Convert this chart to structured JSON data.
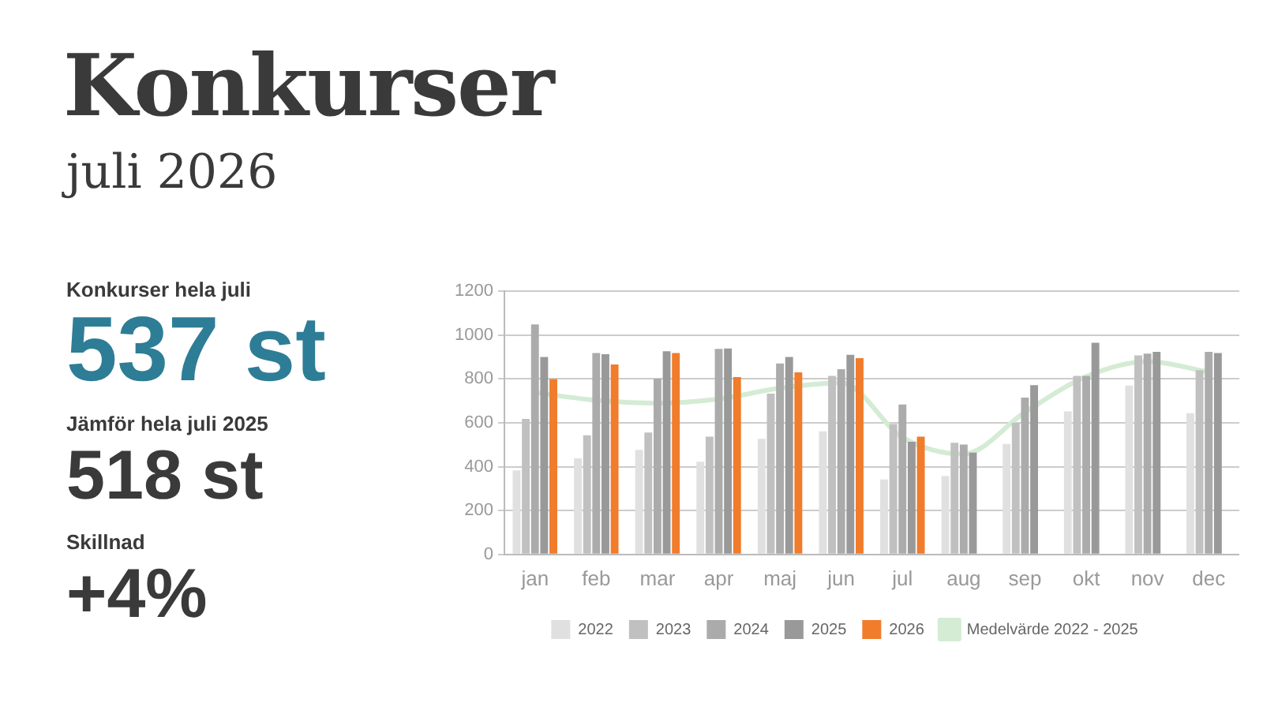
{
  "chart_data": {
    "type": "bar",
    "title": "Konkurser",
    "subtitle": "juli 2026",
    "annotations": [
      "Konkurser hela juli",
      "537 st",
      "Jämför hela juli 2025",
      "518 st",
      "Skillnad",
      "+4%"
    ],
    "categories": [
      "jan",
      "feb",
      "mar",
      "apr",
      "maj",
      "jun",
      "jul",
      "aug",
      "sep",
      "okt",
      "nov",
      "dec"
    ],
    "series": [
      {
        "name": "Medelvärde 2022 - 2025",
        "type": "line",
        "color": "#d4ebd4",
        "values": [
          738,
          703,
          690,
          709,
          758,
          783,
          534,
          458,
          648,
          811,
          880,
          832
        ]
      },
      {
        "name": "2022",
        "color": "#e0e0e0",
        "values": [
          383,
          438,
          477,
          423,
          527,
          561,
          342,
          357,
          504,
          652,
          770,
          644
        ]
      },
      {
        "name": "2023",
        "color": "#c0c0c0",
        "values": [
          618,
          543,
          556,
          537,
          733,
          814,
          595,
          509,
          600,
          814,
          908,
          840
        ]
      },
      {
        "name": "2024",
        "color": "#ababab",
        "values": [
          1049,
          918,
          801,
          937,
          871,
          845,
          684,
          501,
          715,
          814,
          916,
          924
        ]
      },
      {
        "name": "2025",
        "color": "#999999",
        "values": [
          900,
          913,
          926,
          939,
          900,
          910,
          514,
          464,
          772,
          965,
          924,
          918
        ]
      },
      {
        "name": "2026",
        "color": "#f07c2c",
        "values": [
          800,
          866,
          918,
          809,
          830,
          895,
          537,
          null,
          null,
          null,
          null,
          null
        ]
      }
    ],
    "ylim": [
      0,
      1200
    ],
    "yticks": [
      0,
      200,
      400,
      600,
      800,
      1000,
      1200
    ],
    "grid": "y",
    "legend": "bottom",
    "marker": "none"
  }
}
